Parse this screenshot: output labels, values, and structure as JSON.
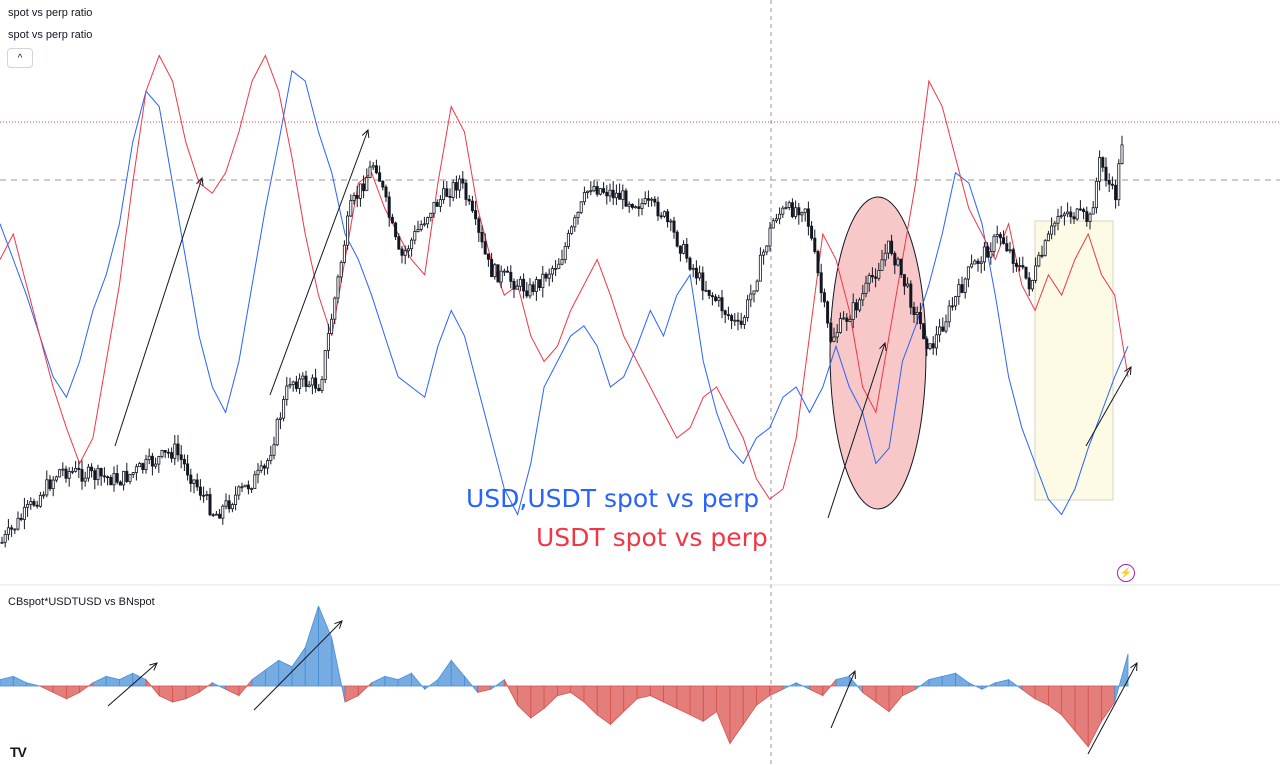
{
  "legend": {
    "line1": "spot vs perp ratio",
    "line2": "spot vs perp ratio",
    "collapse_icon": "chevron-up-icon",
    "collapse_glyph": "^"
  },
  "lower_pane": {
    "title": "CBspot*USDTUSD vs BNspot"
  },
  "annotations": {
    "blue_text": "USD,USDT spot vs perp",
    "red_text": "USDT spot vs perp"
  },
  "logo": {
    "text": "TV",
    "icon": "tradingview-logo-icon"
  },
  "alert_icon": {
    "name": "lightning-icon",
    "glyph": "⚡"
  },
  "colors": {
    "black_series": "#131722",
    "blue_series": "#2962ff",
    "red_series": "#f23645",
    "hist_positive": "#4a90d9",
    "hist_negative": "#d9534f",
    "highlight_ellipse": "#f8c8c8",
    "highlight_rect": "#fdfbe6",
    "dotted_level": "#f23645",
    "dashed_level": "#9598a1"
  },
  "chart_data": [
    {
      "type": "line",
      "title": "spot vs perp ratio",
      "xlabel": "",
      "ylabel": "",
      "series": [
        {
          "name": "USD,USDT spot vs perp",
          "values": [
            0.62,
            0.55,
            0.48,
            0.4,
            0.32,
            0.28,
            0.35,
            0.45,
            0.52,
            0.62,
            0.78,
            0.88,
            0.85,
            0.7,
            0.55,
            0.4,
            0.3,
            0.25,
            0.35,
            0.5,
            0.65,
            0.78,
            0.92,
            0.9,
            0.8,
            0.72,
            0.6,
            0.55,
            0.48,
            0.4,
            0.32,
            0.3,
            0.28,
            0.38,
            0.45,
            0.4,
            0.3,
            0.2,
            0.1,
            0.05,
            0.15,
            0.3,
            0.35,
            0.4,
            0.42,
            0.38,
            0.3,
            0.32,
            0.38,
            0.45,
            0.4,
            0.48,
            0.52,
            0.35,
            0.25,
            0.18,
            0.15,
            0.2,
            0.22,
            0.28,
            0.3,
            0.25,
            0.3,
            0.38,
            0.3,
            0.25,
            0.15,
            0.18,
            0.35,
            0.42,
            0.5,
            0.6,
            0.72,
            0.7,
            0.62,
            0.48,
            0.32,
            0.22,
            0.15,
            0.08,
            0.05,
            0.1,
            0.18,
            0.25,
            0.32,
            0.38
          ]
        },
        {
          "name": "USDT spot vs perp",
          "values": [
            0.55,
            0.6,
            0.5,
            0.4,
            0.3,
            0.22,
            0.15,
            0.2,
            0.35,
            0.5,
            0.7,
            0.88,
            0.95,
            0.9,
            0.78,
            0.7,
            0.68,
            0.72,
            0.8,
            0.9,
            0.95,
            0.88,
            0.75,
            0.6,
            0.48,
            0.4,
            0.55,
            0.7,
            0.72,
            0.65,
            0.6,
            0.55,
            0.52,
            0.7,
            0.85,
            0.8,
            0.65,
            0.55,
            0.48,
            0.5,
            0.4,
            0.35,
            0.38,
            0.45,
            0.5,
            0.55,
            0.48,
            0.4,
            0.35,
            0.3,
            0.25,
            0.2,
            0.22,
            0.28,
            0.3,
            0.25,
            0.2,
            0.12,
            0.08,
            0.1,
            0.2,
            0.4,
            0.6,
            0.55,
            0.45,
            0.3,
            0.25,
            0.4,
            0.55,
            0.7,
            0.9,
            0.85,
            0.75,
            0.65,
            0.6,
            0.55,
            0.62,
            0.5,
            0.45,
            0.52,
            0.48,
            0.55,
            0.6,
            0.52,
            0.48,
            0.32
          ]
        }
      ]
    },
    {
      "type": "area",
      "title": "CBspot*USDTUSD vs BNspot",
      "xlabel": "",
      "ylabel": "",
      "series": [
        {
          "name": "CBspot*USDTUSD vs BNspot",
          "values": [
            0.2,
            0.3,
            0.1,
            0.0,
            -0.2,
            -0.4,
            -0.2,
            0.1,
            0.3,
            0.2,
            0.4,
            0.2,
            -0.3,
            -0.5,
            -0.4,
            -0.2,
            0.1,
            -0.1,
            -0.3,
            0.2,
            0.5,
            0.8,
            0.6,
            1.2,
            2.5,
            1.5,
            -0.5,
            -0.3,
            0.1,
            0.3,
            0.2,
            0.4,
            -0.1,
            0.2,
            0.8,
            0.3,
            -0.2,
            -0.1,
            0.2,
            -0.6,
            -1.0,
            -0.7,
            -0.3,
            -0.2,
            -0.5,
            -0.9,
            -1.2,
            -0.8,
            -0.4,
            -0.3,
            -0.5,
            -0.7,
            -0.9,
            -1.1,
            -0.8,
            -1.8,
            -1.2,
            -0.6,
            -0.3,
            -0.1,
            0.1,
            -0.1,
            -0.3,
            0.2,
            0.3,
            -0.2,
            -0.5,
            -0.8,
            -0.3,
            -0.1,
            0.2,
            0.3,
            0.4,
            0.1,
            -0.1,
            0.1,
            0.2,
            -0.1,
            -0.4,
            -0.6,
            -0.9,
            -1.4,
            -1.9,
            -1.1,
            -0.5,
            1.0
          ]
        }
      ]
    }
  ]
}
